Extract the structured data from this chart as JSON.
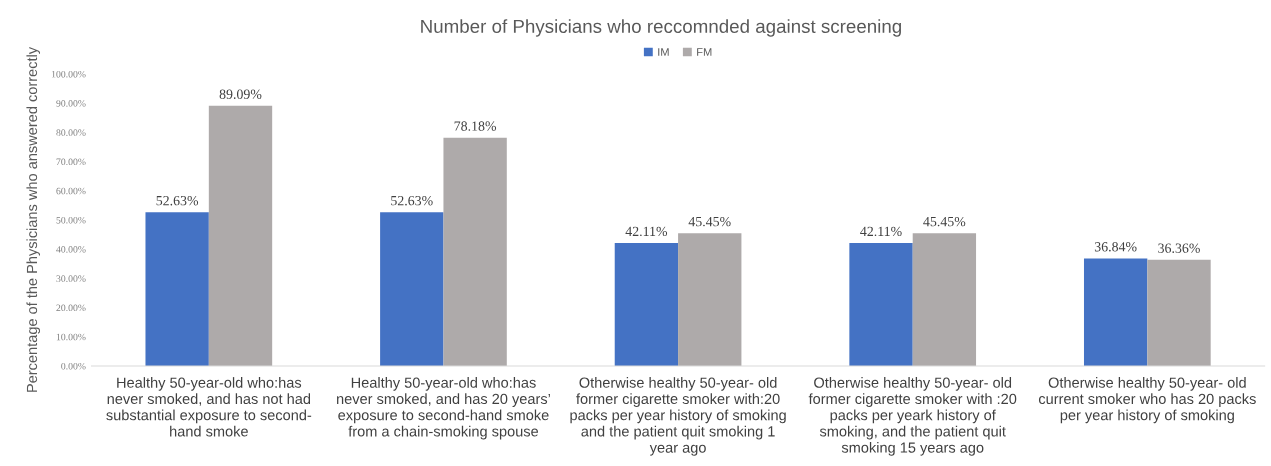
{
  "chart_data": {
    "type": "bar",
    "title": "Number of Physicians who reccomnded against screening",
    "ylabel": "Percentage of the Physicians who answered correctly",
    "categories": [
      "Healthy 50-year-old who:has\nnever smoked, and has not had\nsubstantial exposure to second-\nhand smoke",
      "Healthy 50-year-old who:has\nnever smoked, and has 20 years’\nexposure to second-hand smoke\nfrom a chain-smoking spouse",
      "Otherwise healthy 50-year- old\nformer cigarette smoker with:20\npacks per year history of smoking\nand the patient quit smoking 1\nyear ago",
      "Otherwise healthy 50-year- old\nformer cigarette smoker with :20\npacks per yeark history of\nsmoking, and the patient quit\nsmoking 15 years ago",
      "Otherwise healthy 50-year- old\ncurrent smoker who has 20 packs\nper year history of smoking"
    ],
    "series": [
      {
        "name": "IM",
        "color": "#4472c4",
        "values": [
          52.63,
          52.63,
          42.11,
          42.11,
          36.84
        ],
        "value_labels": [
          "52.63%",
          "52.63%",
          "42.11%",
          "42.11%",
          "36.84%"
        ]
      },
      {
        "name": "FM",
        "color": "#aeaaaa",
        "values": [
          89.09,
          78.18,
          45.45,
          45.45,
          36.36
        ],
        "value_labels": [
          "89.09%",
          "78.18%",
          "45.45%",
          "45.45%",
          "36.36%"
        ]
      }
    ],
    "ylim": [
      0,
      100
    ],
    "yticks": [
      {
        "value": 0,
        "label": "0.00%"
      },
      {
        "value": 10,
        "label": "10.00%"
      },
      {
        "value": 20,
        "label": "20.00%"
      },
      {
        "value": 30,
        "label": "30.00%"
      },
      {
        "value": 40,
        "label": "40.00%"
      },
      {
        "value": 50,
        "label": "50.00%"
      },
      {
        "value": 60,
        "label": "60.00%"
      },
      {
        "value": 70,
        "label": "70.00%"
      },
      {
        "value": 80,
        "label": "80.00%"
      },
      {
        "value": 90,
        "label": "90.00%"
      },
      {
        "value": 100,
        "label": "100.00%"
      }
    ],
    "grid": false,
    "legend": "top"
  }
}
